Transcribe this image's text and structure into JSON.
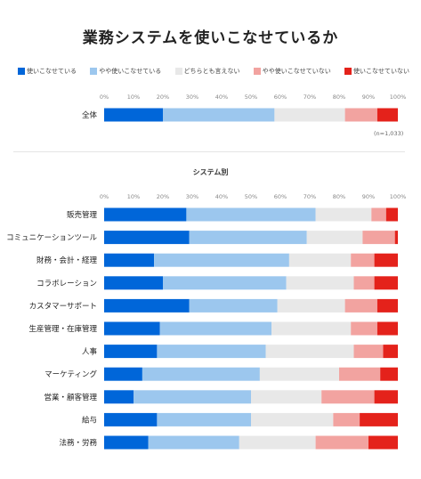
{
  "title": "業務システムを使いこなせているか",
  "legend": [
    {
      "label": "使いこなせている",
      "color": "#0066d9"
    },
    {
      "label": "やや使いこなせている",
      "color": "#9cc7ee"
    },
    {
      "label": "どちらとも言えない",
      "color": "#e8e8e8"
    },
    {
      "label": "やや使いこなせていない",
      "color": "#f2a3a0"
    },
    {
      "label": "使いこなせていない",
      "color": "#e4221b"
    }
  ],
  "sample_note": "(n=1,033)",
  "subtitle": "システム別",
  "chart_data": [
    {
      "type": "bar",
      "orientation": "horizontal",
      "stacked": true,
      "xlim": [
        0,
        100
      ],
      "x_ticks": [
        "0%",
        "10%",
        "20%",
        "30%",
        "40%",
        "50%",
        "60%",
        "70%",
        "80%",
        "90%",
        "100%"
      ],
      "categories": [
        "全体"
      ],
      "series": [
        {
          "name": "使いこなせている",
          "values": [
            20
          ]
        },
        {
          "name": "やや使いこなせている",
          "values": [
            38
          ]
        },
        {
          "name": "どちらとも言えない",
          "values": [
            24
          ]
        },
        {
          "name": "やや使いこなせていない",
          "values": [
            11
          ]
        },
        {
          "name": "使いこなせていない",
          "values": [
            7
          ]
        }
      ]
    },
    {
      "type": "bar",
      "orientation": "horizontal",
      "stacked": true,
      "xlim": [
        0,
        100
      ],
      "x_ticks": [
        "0%",
        "10%",
        "20%",
        "30%",
        "40%",
        "50%",
        "60%",
        "70%",
        "80%",
        "90%",
        "100%"
      ],
      "categories": [
        "販売管理",
        "コミュニケーションツール",
        "財務・会計・経理",
        "コラボレーション",
        "カスタマーサポート",
        "生産管理・在庫管理",
        "人事",
        "マーケティング",
        "営業・顧客管理",
        "給与",
        "法務・労務"
      ],
      "series": [
        {
          "name": "使いこなせている",
          "values": [
            28,
            29,
            17,
            20,
            29,
            19,
            18,
            13,
            10,
            18,
            15
          ]
        },
        {
          "name": "やや使いこなせている",
          "values": [
            44,
            40,
            46,
            42,
            30,
            38,
            37,
            40,
            40,
            32,
            31
          ]
        },
        {
          "name": "どちらとも言えない",
          "values": [
            19,
            19,
            21,
            23,
            23,
            27,
            30,
            27,
            24,
            28,
            26
          ]
        },
        {
          "name": "やや使いこなせていない",
          "values": [
            5,
            11,
            8,
            7,
            11,
            9,
            10,
            14,
            18,
            9,
            18
          ]
        },
        {
          "name": "使いこなせていない",
          "values": [
            4,
            1,
            8,
            8,
            7,
            7,
            5,
            6,
            8,
            13,
            10
          ]
        }
      ]
    }
  ]
}
